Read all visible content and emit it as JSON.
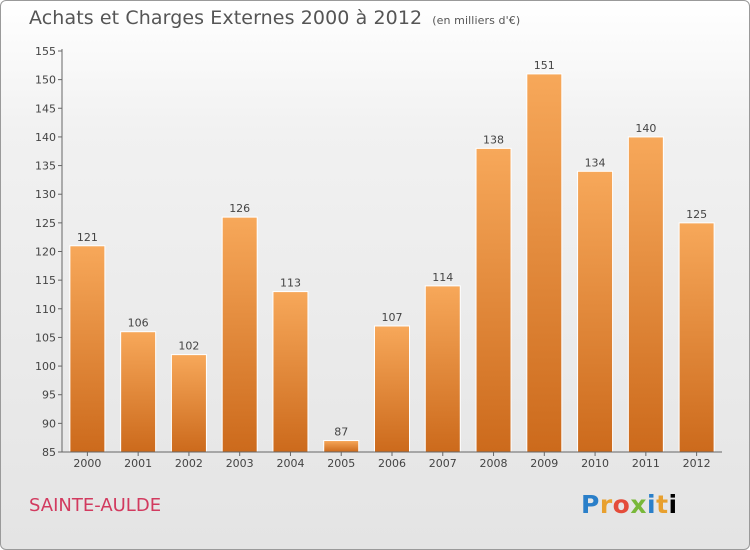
{
  "header": {
    "title": "Achats et Charges Externes 2000 à 2012",
    "unit": "(en milliers d'€)"
  },
  "footer": {
    "commune": "SAINTE-AULDE",
    "logo": [
      "P",
      "r",
      "o",
      "x",
      "i",
      "t",
      "i"
    ]
  },
  "colors": {
    "bar_top": "#f7a85a",
    "bar_bottom": "#cc6a1c",
    "commune": "#d23a5f"
  },
  "chart_data": {
    "type": "bar",
    "title": "Achats et Charges Externes 2000 à 2012",
    "subtitle": "(en milliers d'€)",
    "categories": [
      "2000",
      "2001",
      "2002",
      "2003",
      "2004",
      "2005",
      "2006",
      "2007",
      "2008",
      "2009",
      "2010",
      "2011",
      "2012"
    ],
    "values": [
      121,
      106,
      102,
      126,
      113,
      87,
      107,
      114,
      138,
      151,
      134,
      140,
      125
    ],
    "ylim": [
      85,
      155
    ],
    "yticks": [
      85,
      90,
      95,
      100,
      105,
      110,
      115,
      120,
      125,
      130,
      135,
      140,
      145,
      150,
      155
    ],
    "grid": false,
    "legend": "none"
  }
}
